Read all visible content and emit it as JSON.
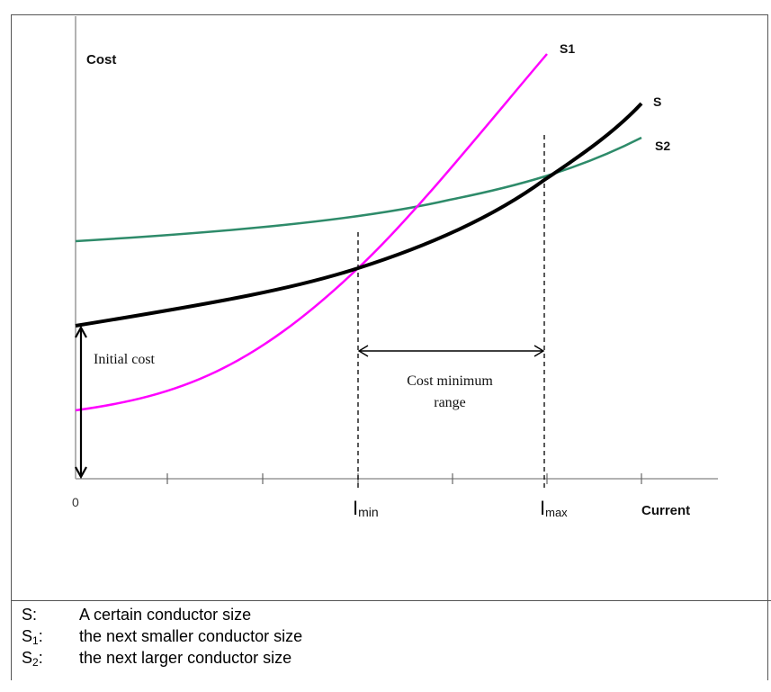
{
  "diagram": {
    "y_axis_label": "Cost",
    "x_axis_label": "Current",
    "origin_label": "0",
    "imin_label": {
      "main": "I",
      "sub": "min"
    },
    "imax_label": {
      "main": "I",
      "sub": "max"
    },
    "curve_labels": {
      "s": "S",
      "s1": "S1",
      "s2": "S2"
    },
    "initial_cost_label": "Initial cost",
    "range_label_line1": "Cost minimum",
    "range_label_line2": "range",
    "colors": {
      "s": "#000000",
      "s1": "#ff00ff",
      "s2": "#2e8b6a"
    }
  },
  "legend": [
    {
      "key": "S",
      "sub": "",
      "separator": ":",
      "text": "A certain conductor size"
    },
    {
      "key": "S",
      "sub": "1",
      "separator": ":",
      "text": "the next smaller conductor size"
    },
    {
      "key": "S",
      "sub": "2",
      "separator": ":",
      "text": "the next larger conductor size"
    }
  ]
}
